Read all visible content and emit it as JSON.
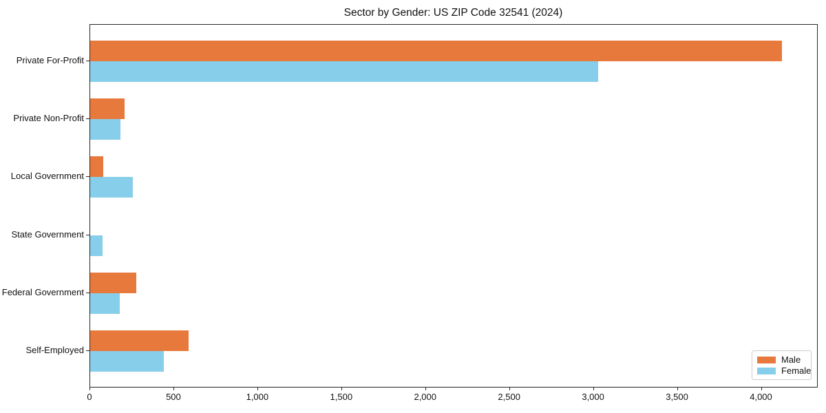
{
  "title": "Sector by Gender: US ZIP Code 32541 (2024)",
  "colors": {
    "male": "#E8793D",
    "female": "#87CEEA",
    "axis": "#262626",
    "legend_border": "#cccccc",
    "background": "#ffffff"
  },
  "legend": {
    "items": [
      {
        "label": "Male",
        "color_key": "male"
      },
      {
        "label": "Female",
        "color_key": "female"
      }
    ],
    "position": "lower right"
  },
  "chart_data": {
    "type": "bar",
    "orientation": "horizontal",
    "title": "Sector by Gender: US ZIP Code 32541 (2024)",
    "xlabel": "",
    "ylabel": "",
    "categories": [
      "Private For-Profit",
      "Private Non-Profit",
      "Local Government",
      "State Government",
      "Federal Government",
      "Self-Employed"
    ],
    "series": [
      {
        "name": "Male",
        "color_key": "male",
        "values": [
          4120,
          205,
          78,
          0,
          275,
          585
        ]
      },
      {
        "name": "Female",
        "color_key": "female",
        "values": [
          3025,
          180,
          255,
          72,
          175,
          440
        ]
      }
    ],
    "xlim": [
      0,
      4330
    ],
    "xticks": [
      0,
      500,
      1000,
      1500,
      2000,
      2500,
      3000,
      3500,
      4000
    ],
    "xtick_labels": [
      "0",
      "500",
      "1,000",
      "1,500",
      "2,000",
      "2,500",
      "3,000",
      "3,500",
      "4,000"
    ],
    "grid": false,
    "legend_position": "lower right"
  }
}
